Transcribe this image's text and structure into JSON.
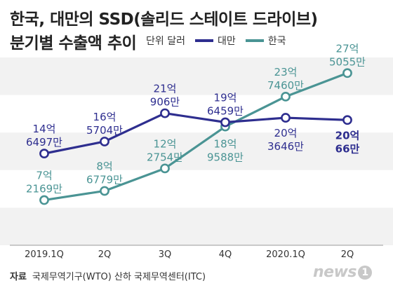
{
  "title_line1": "한국, 대만의 SSD(솔리드 스테이트 드라이브)",
  "title_line2": "분기별 수출액 추이",
  "legend": {
    "unit": "단위 달러",
    "items": [
      {
        "name": "대만",
        "color": "#2e2e8f"
      },
      {
        "name": "한국",
        "color": "#4a9494"
      }
    ]
  },
  "source": {
    "label": "자료",
    "text": "국제무역기구(WTO) 산하 국제무역센터(ITC)"
  },
  "logo": {
    "text": "news",
    "mark": "1"
  },
  "chart_data": {
    "type": "line",
    "categories": [
      "2019.1Q",
      "2Q",
      "3Q",
      "4Q",
      "2020.1Q",
      "2Q"
    ],
    "ylim": [
      0,
      3000000000
    ],
    "series": [
      {
        "name": "대만",
        "color": "#2e2e8f",
        "values": [
          1464970000,
          1657040000,
          2109060000,
          1964590000,
          2036460000,
          2000660000
        ],
        "labels": [
          [
            "14억",
            "6497만"
          ],
          [
            "16억",
            "5704만"
          ],
          [
            "21억",
            "906만"
          ],
          [
            "19억",
            "6459만"
          ],
          [
            "20억",
            "3646만"
          ],
          [
            "20억",
            "66만"
          ]
        ]
      },
      {
        "name": "한국",
        "color": "#4a9494",
        "values": [
          721690000,
          867790000,
          1227540000,
          1895880000,
          2374600000,
          2750550000
        ],
        "labels": [
          [
            "7억",
            "2169만"
          ],
          [
            "8억",
            "6779만"
          ],
          [
            "12억",
            "2754만"
          ],
          [
            "18억",
            "9588만"
          ],
          [
            "23억",
            "7460만"
          ],
          [
            "27억",
            "5055만"
          ]
        ]
      }
    ]
  }
}
